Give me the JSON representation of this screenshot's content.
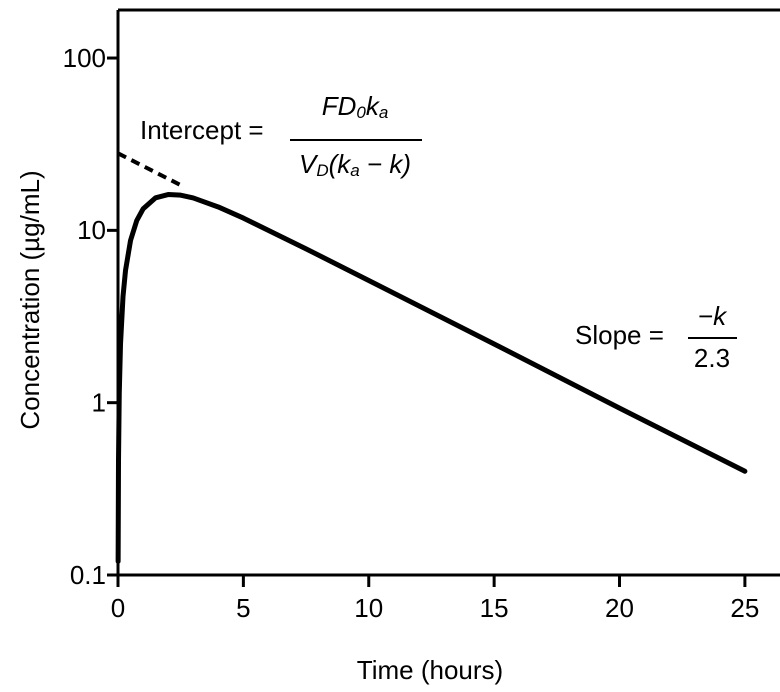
{
  "chart_data": {
    "type": "line",
    "y_label": "Concentration (µg/mL)",
    "x_label": "Time (hours)",
    "log_y": true,
    "xlim": [
      0,
      26.4
    ],
    "xticks": [
      0,
      5,
      10,
      15,
      20,
      25
    ],
    "ylim": [
      0.1,
      190
    ],
    "yticks": [
      0.1,
      1,
      10,
      100
    ],
    "series": [
      {
        "color": "#000000",
        "line_style": "solid",
        "x": [
          0.005,
          0.02,
          0.05,
          0.1,
          0.2,
          0.3,
          0.5,
          0.75,
          1,
          1.5,
          2,
          2.5,
          3,
          4,
          5,
          7.5,
          10,
          15,
          20,
          25
        ],
        "values": [
          0.12,
          0.46,
          1.13,
          2.19,
          4.14,
          5.86,
          8.74,
          11.42,
          13.32,
          15.45,
          16.14,
          16.01,
          15.42,
          13.67,
          11.78,
          7.81,
          5.12,
          2.19,
          0.93,
          0.4
        ]
      },
      {
        "color": "#000000",
        "line_style": "dashed",
        "x": [
          0,
          2.5
        ],
        "values": [
          28,
          18.3
        ]
      }
    ],
    "annotations": {
      "intercept_label": "Intercept =",
      "intercept_numerator": [
        "FD",
        "0",
        "k",
        "a"
      ],
      "intercept_denominator": [
        "V",
        "D",
        "(k",
        "a",
        " − k)"
      ],
      "slope_label": "Slope =",
      "slope_numerator": "−k",
      "slope_denominator": "2.3"
    }
  }
}
